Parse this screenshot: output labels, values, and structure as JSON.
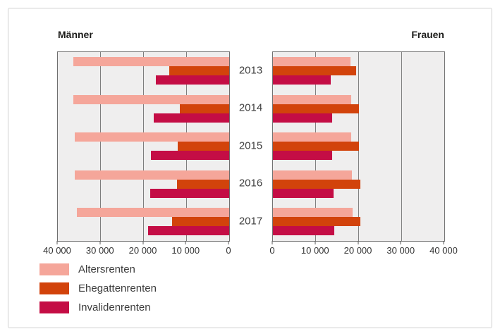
{
  "chart_data": {
    "type": "bar",
    "orientation": "horizontal",
    "layout": "diverging-pyramid",
    "categories": [
      "2013",
      "2014",
      "2015",
      "2016",
      "2017"
    ],
    "xlim": [
      0,
      40000
    ],
    "ticks": [
      0,
      10000,
      20000,
      30000,
      40000
    ],
    "grid": true,
    "legend_position": "bottom-left",
    "panels": [
      {
        "title": "Männer",
        "direction": "left",
        "tick_labels": [
          "40 000",
          "30 000",
          "20 000",
          "10 000",
          "0"
        ],
        "series": [
          {
            "name": "Altersrenten",
            "values": [
              36400,
              36300,
              36000,
              36000,
              35600
            ]
          },
          {
            "name": "Ehegattenrenten",
            "values": [
              14000,
              11500,
              12100,
              12200,
              13400
            ]
          },
          {
            "name": "Invalidenrenten",
            "values": [
              17200,
              17600,
              18300,
              18500,
              19000
            ]
          }
        ]
      },
      {
        "title": "Frauen",
        "direction": "right",
        "tick_labels": [
          "0",
          "10 000",
          "20 000",
          "30 000",
          "40 000"
        ],
        "series": [
          {
            "name": "Altersrenten",
            "values": [
              18100,
              18300,
              18300,
              18500,
              18600
            ]
          },
          {
            "name": "Ehegattenrenten",
            "values": [
              19500,
              20000,
              20100,
              20400,
              20400
            ]
          },
          {
            "name": "Invalidenrenten",
            "values": [
              13500,
              13800,
              13900,
              14200,
              14400
            ]
          }
        ]
      }
    ],
    "legend": [
      {
        "label": "Altersrenten",
        "color": "#f5a69a"
      },
      {
        "label": "Ehegattenrenten",
        "color": "#d2430b"
      },
      {
        "label": "Invalidenrenten",
        "color": "#c40d45"
      }
    ],
    "style": {
      "plot_background": "#efeeee",
      "gridline_color": "#7d7d7d",
      "plot_border_color": "#6f6f6f",
      "frame_border_color": "#cfcfcf"
    }
  }
}
